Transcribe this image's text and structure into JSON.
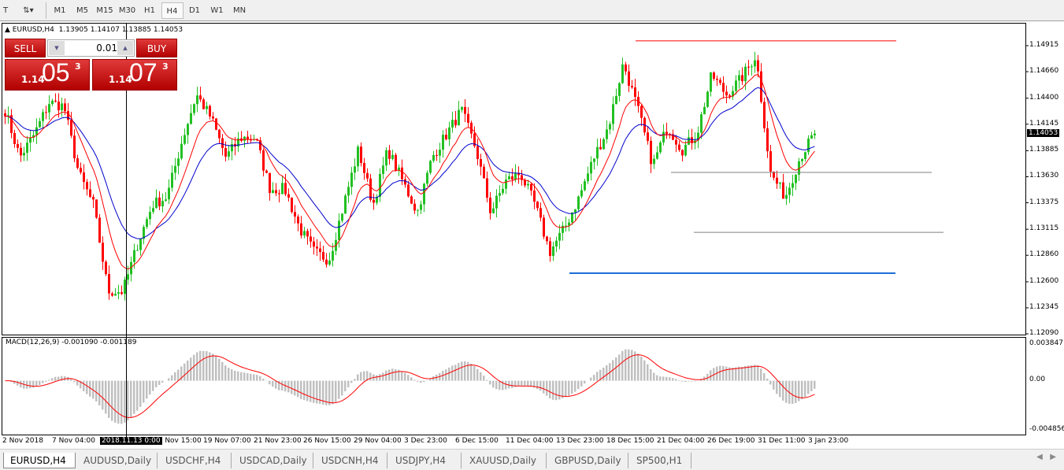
{
  "toolbar": {
    "timeframes": [
      "M1",
      "M5",
      "M15",
      "M30",
      "H1",
      "H4",
      "D1",
      "W1",
      "MN"
    ],
    "active": "H4"
  },
  "legend": {
    "symbol": "EURUSD,H4",
    "ohlc": "1.13905 1.14107 1.13885 1.14053"
  },
  "trade": {
    "sell_label": "SELL",
    "buy_label": "BUY",
    "lot": "0.01",
    "sell_small": "1.14",
    "sell_large": "05",
    "sell_pip": "3",
    "buy_small": "1.14",
    "buy_large": "07",
    "buy_pip": "3"
  },
  "price_axis": [
    "1.14915",
    "1.14660",
    "1.14400",
    "1.14145",
    "1.13885",
    "1.13630",
    "1.13375",
    "1.13115",
    "1.12860",
    "1.12600",
    "1.12345",
    "1.12090"
  ],
  "current_price": "1.14053",
  "macd": {
    "label": "MACD(12,26,9) -0.001090 -0.001189",
    "axis": [
      "0.003847",
      "0.00",
      "-0.004856"
    ]
  },
  "time_axis": [
    "2 Nov 2018",
    "7 Nov 04:00",
    "14 Nov 15:00",
    "19 Nov 07:00",
    "21 Nov 23:00",
    "26 Nov 15:00",
    "29 Nov 04:00",
    "3 Dec 23:00",
    "6 Dec 15:00",
    "11 Dec 04:00",
    "13 Dec 23:00",
    "18 Dec 15:00",
    "21 Dec 04:00",
    "26 Dec 19:00",
    "31 Dec 11:00",
    "3 Jan 23:00"
  ],
  "crosshair_time": "2018.11.13 0:00",
  "tabs": [
    "EURUSD,H4",
    "AUDUSD,Daily",
    "USDCHF,H4",
    "USDCAD,Daily",
    "USDCNH,H4",
    "USDJPY,H4",
    "XAUUSD,Daily",
    "GBPUSD,Daily",
    "SP500,H1"
  ],
  "chart_data": {
    "type": "candlestick",
    "symbol": "EURUSD",
    "timeframe": "H4",
    "ylim": [
      1.1209,
      1.14915
    ],
    "price_path": [
      1.14282,
      1.13819,
      1.1405,
      1.14359,
      1.14321,
      1.13664,
      1.13355,
      1.12506,
      1.12506,
      1.1297,
      1.13355,
      1.13433,
      1.13973,
      1.14436,
      1.14205,
      1.13819,
      1.14012,
      1.14012,
      1.1351,
      1.1351,
      1.13124,
      1.12892,
      1.12815,
      1.13355,
      1.13896,
      1.13355,
      1.13896,
      1.13587,
      1.13278,
      1.13819,
      1.1405,
      1.14282,
      1.13896,
      1.13278,
      1.13587,
      1.13664,
      1.13355,
      1.12892,
      1.13124,
      1.13433,
      1.13819,
      1.14127,
      1.14745,
      1.14282,
      1.13742,
      1.14127,
      1.13896,
      1.1405,
      1.14629,
      1.14436,
      1.1459,
      1.14822,
      1.13664,
      1.13433,
      1.13819,
      1.14053
    ],
    "horizontal_lines": [
      {
        "price": 1.14962,
        "color": "#ff0000"
      },
      {
        "price": 1.13672,
        "color": "#808080"
      },
      {
        "price": 1.13085,
        "color": "#808080"
      },
      {
        "price": 1.12684,
        "color": "#1e6ed8"
      }
    ],
    "colors": {
      "bull": "#22c022",
      "bear": "#ff0000",
      "ma_fast": "#ff0000",
      "ma_slow": "#0000cc",
      "macd_hist": "#c0c0c0",
      "macd_signal": "#ff0000"
    },
    "macd_ylim": [
      -0.004856,
      0.003847
    ]
  }
}
